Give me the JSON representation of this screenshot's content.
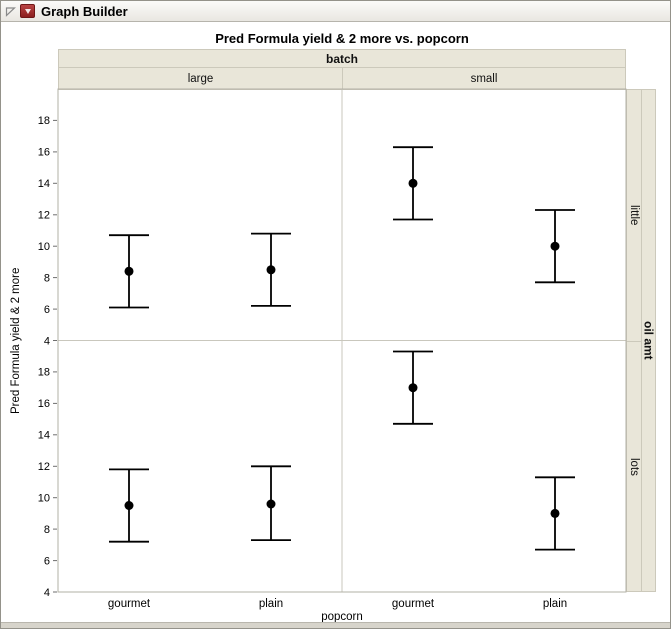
{
  "window": {
    "title": "Graph Builder"
  },
  "icons": {
    "outline_disclosure": "open-outline-triangle-icon",
    "menu_button": "red-triangle-menu-icon"
  },
  "colors": {
    "band_background": "#e9e6d9",
    "marker": "#000000",
    "panel_border": "#b2b0a6",
    "red_triangle": "#8c1f1f"
  },
  "chart_data": {
    "type": "scatter",
    "subtype": "points-with-interval-bars",
    "title": "Pred Formula yield & 2 more vs. popcorn",
    "xlabel": "popcorn",
    "ylabel": "Pred Formula yield & 2 more",
    "column_group": {
      "label": "batch",
      "levels": [
        "large",
        "small"
      ]
    },
    "row_group": {
      "label": "oil amt",
      "levels": [
        "little",
        "lots"
      ]
    },
    "x_categories": [
      "gourmet",
      "plain"
    ],
    "ylim": [
      4,
      20
    ],
    "yticks": [
      18,
      16,
      14,
      12,
      10,
      8,
      6,
      4
    ],
    "grid": false,
    "legend": "none",
    "panels": [
      {
        "col": "large",
        "row": "little",
        "points": [
          {
            "x": "gourmet",
            "y": 8.4,
            "lo": 6.1,
            "hi": 10.7
          },
          {
            "x": "plain",
            "y": 8.5,
            "lo": 6.2,
            "hi": 10.8
          }
        ]
      },
      {
        "col": "small",
        "row": "little",
        "points": [
          {
            "x": "gourmet",
            "y": 14.0,
            "lo": 11.7,
            "hi": 16.3
          },
          {
            "x": "plain",
            "y": 10.0,
            "lo": 7.7,
            "hi": 12.3
          }
        ]
      },
      {
        "col": "large",
        "row": "lots",
        "points": [
          {
            "x": "gourmet",
            "y": 9.5,
            "lo": 7.2,
            "hi": 11.8
          },
          {
            "x": "plain",
            "y": 9.6,
            "lo": 7.3,
            "hi": 12.0
          }
        ]
      },
      {
        "col": "small",
        "row": "lots",
        "points": [
          {
            "x": "gourmet",
            "y": 17.0,
            "lo": 14.7,
            "hi": 19.3
          },
          {
            "x": "plain",
            "y": 9.0,
            "lo": 6.7,
            "hi": 11.3
          }
        ]
      }
    ]
  }
}
